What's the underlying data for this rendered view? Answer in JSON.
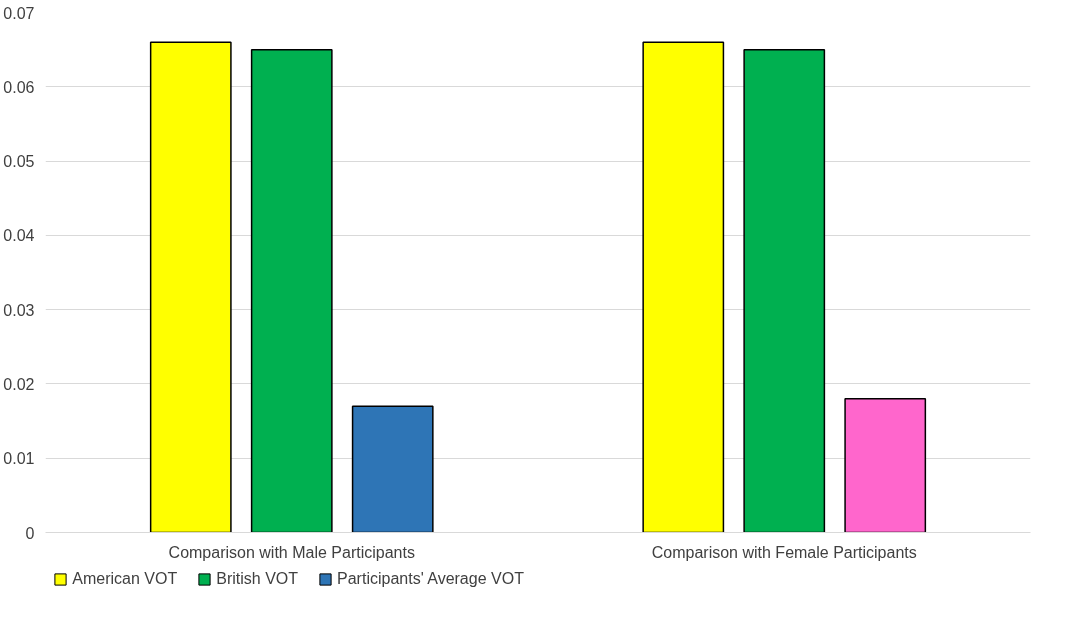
{
  "chart_data": {
    "type": "bar",
    "categories": [
      "Comparison with Male Participants",
      "Comparison with Female Participants"
    ],
    "series": [
      {
        "name": "American VOT",
        "color": "#ffff00",
        "values": [
          0.066,
          0.066
        ]
      },
      {
        "name": "British VOT",
        "color": "#00b050",
        "values": [
          0.065,
          0.065
        ]
      },
      {
        "name": "Participants' Average VOT",
        "color": "#2e75b6",
        "colors": [
          "#2e75b6",
          "#ff66cc"
        ],
        "values": [
          0.017,
          0.018
        ]
      }
    ],
    "ylim": [
      0,
      0.07
    ],
    "yticks": [
      0,
      0.01,
      0.02,
      0.03,
      0.04,
      0.05,
      0.06,
      0.07
    ],
    "grid": "y",
    "legend": "bottom"
  }
}
